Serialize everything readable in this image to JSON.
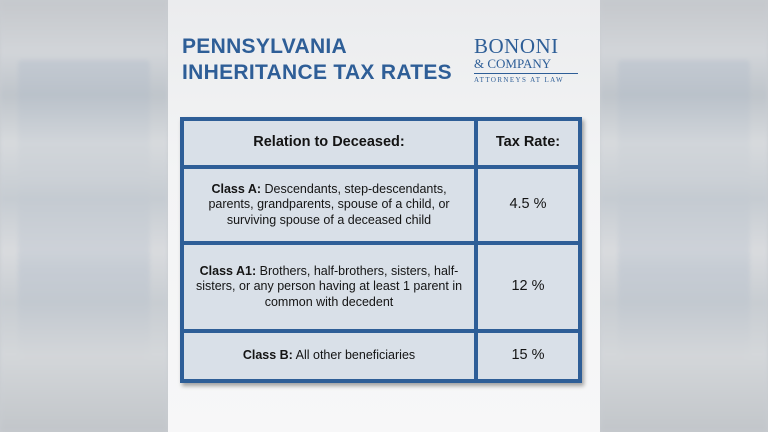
{
  "title": {
    "line1": "PENNSYLVANIA",
    "line2": "INHERITANCE TAX RATES"
  },
  "logo": {
    "name": "BONONI",
    "company": "& COMPANY",
    "tagline": "ATTORNEYS AT LAW"
  },
  "table": {
    "headers": [
      "Relation to Deceased:",
      "Tax Rate:"
    ],
    "rows": [
      {
        "class": "Class A:",
        "desc": " Descendants, step-descendants, parents, grandparents, spouse of a child, or surviving spouse of a deceased child",
        "rate": "4.5 %"
      },
      {
        "class": "Class A1:",
        "desc": " Brothers, half-brothers, sisters, half-sisters, or any person having at least 1 parent in common with decedent",
        "rate": "12 %"
      },
      {
        "class": "Class B:",
        "desc": " All other beneficiaries",
        "rate": "15 %"
      }
    ]
  },
  "colors": {
    "brand_blue": "#2e5e97",
    "cell_bg": "#d9e0e8"
  }
}
